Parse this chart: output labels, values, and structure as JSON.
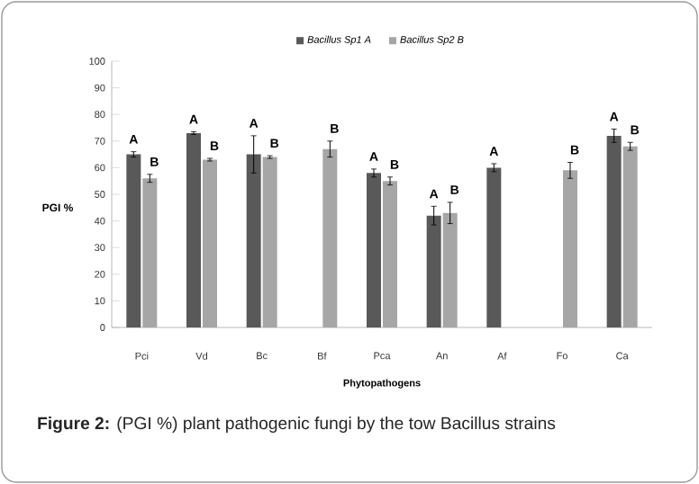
{
  "chart_data": {
    "type": "bar",
    "xlabel": "Phytopathogens",
    "ylabel": "PGI %",
    "categories": [
      "Pci",
      "Vd",
      "Bc",
      "Bf",
      "Pca",
      "An",
      "Af",
      "Fo",
      "Ca"
    ],
    "series": [
      {
        "name": "Bacillus Sp1 A",
        "color": "#595959",
        "values": [
          65,
          73,
          65,
          null,
          58,
          42,
          60,
          null,
          72
        ],
        "errors": [
          1,
          0.5,
          7,
          null,
          1.5,
          3.5,
          1.5,
          null,
          2.5
        ],
        "value_labels": [
          "A",
          "A",
          "A",
          null,
          "A",
          "A",
          "A",
          null,
          "A"
        ]
      },
      {
        "name": "Bacillus Sp2 B",
        "color": "#a6a6a6",
        "values": [
          56,
          63,
          64,
          67,
          55,
          43,
          null,
          59,
          68
        ],
        "errors": [
          1.5,
          0.5,
          0.5,
          3,
          1.5,
          4,
          null,
          3,
          1.5
        ],
        "value_labels": [
          "B",
          "B",
          "B",
          "B",
          "B",
          "B",
          null,
          "B",
          "B"
        ]
      }
    ],
    "ylim": [
      0,
      100
    ],
    "yticks": [
      0,
      10,
      20,
      30,
      40,
      50,
      60,
      70,
      80,
      90,
      100
    ],
    "grid": false,
    "legend": "top",
    "annotations": [
      "**Figure 2:** (PGI %) plant pathogenic fungi by the tow Bacillus strains"
    ]
  }
}
